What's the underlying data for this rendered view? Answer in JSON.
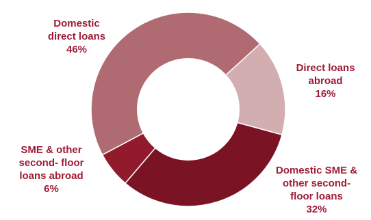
{
  "chart_data": {
    "type": "pie",
    "donut": true,
    "title": "",
    "slices": [
      {
        "label_lines": [
          "Domestic",
          "direct loans",
          "46%"
        ],
        "value": 46,
        "color": "#af6b71"
      },
      {
        "label_lines": [
          "Direct loans",
          "abroad",
          "16%"
        ],
        "value": 16,
        "color": "#d3aeb1"
      },
      {
        "label_lines": [
          "Domestic SME &",
          "other second-",
          "floor loans",
          "32%"
        ],
        "value": 32,
        "color": "#7a1425"
      },
      {
        "label_lines": [
          "SME & other",
          "second- floor",
          "loans abroad",
          "6%"
        ],
        "value": 6,
        "color": "#921a2d"
      }
    ],
    "label_color": "#9e1c35"
  }
}
